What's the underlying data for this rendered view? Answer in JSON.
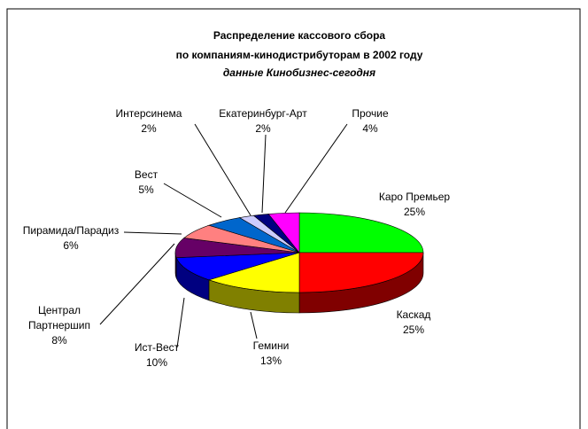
{
  "chart_data": {
    "type": "pie3d",
    "title": [
      "Распределение кассового сбора",
      "по компаниям-кинодистрибуторам в 2002 году"
    ],
    "subtitle": "данные Кинобизнес-сегодня",
    "categories": [
      "Каро Премьер",
      "Каскад",
      "Гемини",
      "Ист-Вест",
      "Централ Партнершип",
      "Пирамида/Парадиз",
      "Вест",
      "Интерсинема",
      "Екатеринбург-Арт",
      "Прочие"
    ],
    "values": [
      25,
      25,
      13,
      10,
      8,
      6,
      5,
      2,
      2,
      4
    ],
    "value_labels": [
      "25%",
      "25%",
      "13%",
      "10%",
      "8%",
      "6%",
      "5%",
      "2%",
      "2%",
      "4%"
    ],
    "colors": [
      "#00ff00",
      "#ff0000",
      "#ffff00",
      "#0000ff",
      "#660066",
      "#ff8080",
      "#0066cc",
      "#ccccff",
      "#000080",
      "#ff00ff"
    ]
  }
}
